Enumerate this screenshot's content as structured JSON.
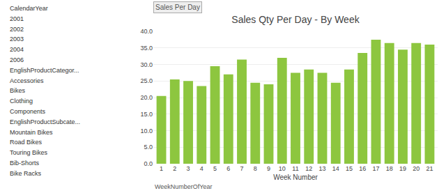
{
  "chart_data": {
    "type": "bar",
    "title": "Sales Qty Per Day - By Week",
    "xlabel": "Week Number",
    "categories": [
      "1",
      "2",
      "3",
      "4",
      "5",
      "6",
      "7",
      "8",
      "9",
      "10",
      "11",
      "12",
      "13",
      "14",
      "15",
      "16",
      "17",
      "18",
      "19",
      "20",
      "21"
    ],
    "values": [
      20.5,
      25.5,
      25.0,
      23.5,
      29.5,
      27.0,
      31.5,
      24.5,
      24.0,
      32.0,
      27.5,
      28.5,
      27.5,
      24.5,
      28.5,
      33.5,
      37.5,
      36.5,
      34.5,
      36.5,
      36.0
    ],
    "color": "#8DC63F",
    "ylim": [
      0,
      40.0
    ],
    "yticks": [
      {
        "value": 0,
        "label": "0.0"
      },
      {
        "value": 5,
        "label": "5.0"
      },
      {
        "value": 10,
        "label": "10.0"
      },
      {
        "value": 15,
        "label": "15.0"
      },
      {
        "value": 20,
        "label": "20.0"
      },
      {
        "value": 25,
        "label": "25.0"
      },
      {
        "value": 30,
        "label": "30.0"
      },
      {
        "value": 35,
        "label": "35.0"
      },
      {
        "value": 40,
        "label": "40.0"
      }
    ],
    "grid": true,
    "annotations": [
      "Sales Per Day",
      "WeekNumberOfYear",
      "CalendarYear",
      "2001",
      "2002",
      "2003",
      "2004",
      "2006",
      "EnglishProductCategor...",
      "Accessories",
      "Bikes",
      "Clothing",
      "Components",
      "EnglishProductSubcate...",
      "Mountain Bikes",
      "Road Bikes",
      "Touring Bikes",
      "Bib-Shorts",
      "Bike Racks"
    ]
  }
}
